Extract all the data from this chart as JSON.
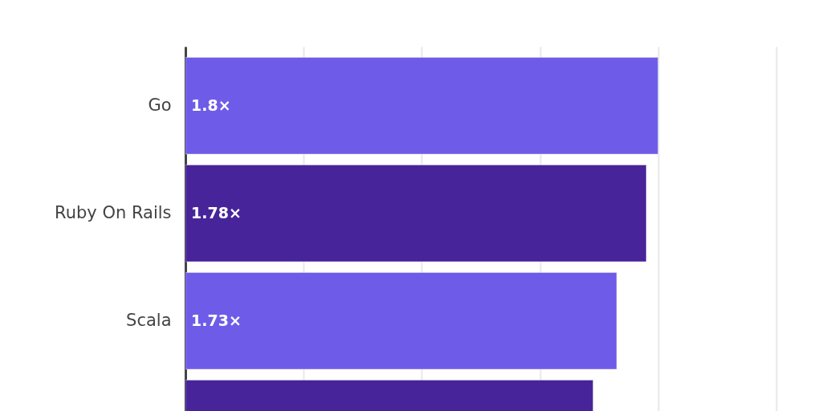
{
  "chart_data": {
    "type": "bar",
    "orientation": "horizontal",
    "categories": [
      "Go",
      "Ruby On Rails",
      "Scala",
      null
    ],
    "values": [
      1.8,
      1.78,
      1.73,
      1.69
    ],
    "colors": [
      "#6e5ce8",
      "#47249a",
      "#6e5ce8",
      "#47249a"
    ],
    "value_labels": [
      "1.8×",
      "1.78×",
      "1.73×",
      null
    ],
    "xlim": [
      1.0,
      2.0
    ],
    "xticks": [
      {
        "value": 1.0,
        "label": null
      },
      {
        "value": 1.2,
        "label": null
      },
      {
        "value": 1.4,
        "label": null
      },
      {
        "value": 1.6,
        "label": null
      },
      {
        "value": 1.8,
        "label": null
      },
      {
        "value": 2.0,
        "label": null
      }
    ],
    "grid": "x",
    "tick_labels": "y"
  }
}
